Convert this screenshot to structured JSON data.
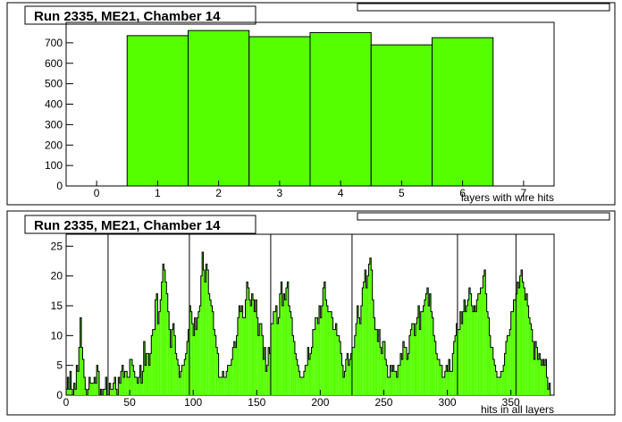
{
  "chart_data": [
    {
      "type": "bar",
      "title": "Run 2335, ME21, Chamber 14",
      "xlabel": "layers with wire hits",
      "ylabel": "",
      "xlim": [
        -0.5,
        7.5
      ],
      "ylim": [
        0,
        800
      ],
      "x_ticks": [
        0,
        1,
        2,
        3,
        4,
        5,
        6,
        7
      ],
      "y_ticks": [
        0,
        100,
        200,
        300,
        400,
        500,
        600,
        700
      ],
      "bin_width": 1,
      "bins": [
        0,
        1,
        2,
        3,
        4,
        5,
        6,
        7
      ],
      "values": [
        0,
        735,
        760,
        730,
        750,
        690,
        725,
        0
      ],
      "fill_color": "#55ff00",
      "grid": false,
      "legend": "stats box top-right (unreadable)"
    },
    {
      "type": "bar",
      "title": "Run 2335, ME21, Chamber 14",
      "xlabel": "hits in all layers",
      "ylabel": "",
      "xlim": [
        0,
        384
      ],
      "ylim": [
        0,
        27
      ],
      "x_ticks": [
        0,
        50,
        100,
        150,
        200,
        250,
        300,
        350
      ],
      "y_ticks": [
        0,
        5,
        10,
        15,
        20,
        25
      ],
      "bin_width": 1,
      "bin_start": 0,
      "values": [
        1,
        3,
        1,
        4,
        1,
        0,
        2,
        1,
        5,
        4,
        8,
        13,
        8,
        6,
        3,
        1,
        0,
        1,
        3,
        2,
        2,
        2,
        3,
        2,
        5,
        4,
        0,
        1,
        0,
        1,
        1,
        3,
        0,
        0,
        2,
        1,
        1,
        2,
        3,
        1,
        0,
        3,
        2,
        4,
        5,
        3,
        4,
        4,
        3,
        3,
        6,
        6,
        5,
        4,
        3,
        3,
        2,
        3,
        5,
        2,
        4,
        9,
        5,
        7,
        7,
        5,
        7,
        10,
        11,
        11,
        16,
        17,
        12,
        14,
        16,
        19,
        22,
        21,
        19,
        17,
        14,
        11,
        8,
        11,
        12,
        10,
        7,
        6,
        5,
        3,
        4,
        5,
        5,
        6,
        7,
        9,
        11,
        15,
        14,
        12,
        10,
        13,
        11,
        13,
        14,
        15,
        20,
        24,
        21,
        19,
        22,
        21,
        17,
        16,
        15,
        14,
        11,
        10,
        8,
        7,
        3,
        3,
        3,
        4,
        3,
        3,
        4,
        5,
        5,
        5,
        6,
        8,
        9,
        8,
        10,
        13,
        15,
        14,
        15,
        13,
        13,
        16,
        19,
        18,
        16,
        15,
        17,
        16,
        14,
        16,
        13,
        10,
        12,
        12,
        10,
        6,
        8,
        4,
        5,
        8,
        7,
        12,
        12,
        14,
        14,
        15,
        12,
        13,
        17,
        19,
        15,
        17,
        16,
        18,
        19,
        15,
        14,
        13,
        10,
        9,
        7,
        6,
        5,
        4,
        3,
        3,
        3,
        4,
        5,
        5,
        8,
        6,
        7,
        8,
        11,
        11,
        13,
        13,
        12,
        15,
        13,
        15,
        18,
        19,
        16,
        15,
        14,
        14,
        14,
        13,
        11,
        11,
        12,
        10,
        10,
        9,
        7,
        5,
        3,
        4,
        6,
        7,
        5,
        6,
        7,
        8,
        8,
        10,
        12,
        15,
        13,
        12,
        15,
        18,
        19,
        21,
        18,
        20,
        22,
        23,
        21,
        16,
        13,
        11,
        11,
        9,
        11,
        8,
        7,
        9,
        9,
        6,
        5,
        3,
        3,
        5,
        4,
        5,
        4,
        4,
        3,
        5,
        5,
        7,
        6,
        9,
        8,
        8,
        6,
        7,
        10,
        11,
        12,
        12,
        10,
        12,
        13,
        15,
        11,
        14,
        14,
        15,
        16,
        17,
        18,
        15,
        17,
        14,
        13,
        10,
        9,
        7,
        6,
        6,
        5,
        5,
        3,
        3,
        4,
        5,
        4,
        6,
        4,
        4,
        7,
        9,
        10,
        12,
        11,
        11,
        14,
        12,
        14,
        16,
        14,
        15,
        16,
        18,
        17,
        15,
        14,
        15,
        14,
        16,
        17,
        17,
        18,
        18,
        20,
        21,
        17,
        14,
        13,
        10,
        8,
        8,
        6,
        5,
        4,
        3,
        3,
        3,
        4,
        4,
        5,
        7,
        9,
        10,
        10,
        11,
        14,
        14,
        16,
        16,
        17,
        19,
        18,
        20,
        21,
        19,
        18,
        16,
        17,
        15,
        13,
        12,
        11,
        9,
        6,
        9,
        8,
        6,
        7,
        6,
        5,
        6,
        5,
        6,
        3,
        1,
        2,
        0
      ],
      "spikes": [
        [
          33,
          27
        ],
        [
          97,
          27
        ],
        [
          161,
          27
        ],
        [
          225,
          27
        ],
        [
          308,
          27
        ],
        [
          354,
          27
        ]
      ],
      "fill_color": "#55ff00",
      "grid": false,
      "legend": "stats box top-right (unreadable)"
    }
  ]
}
